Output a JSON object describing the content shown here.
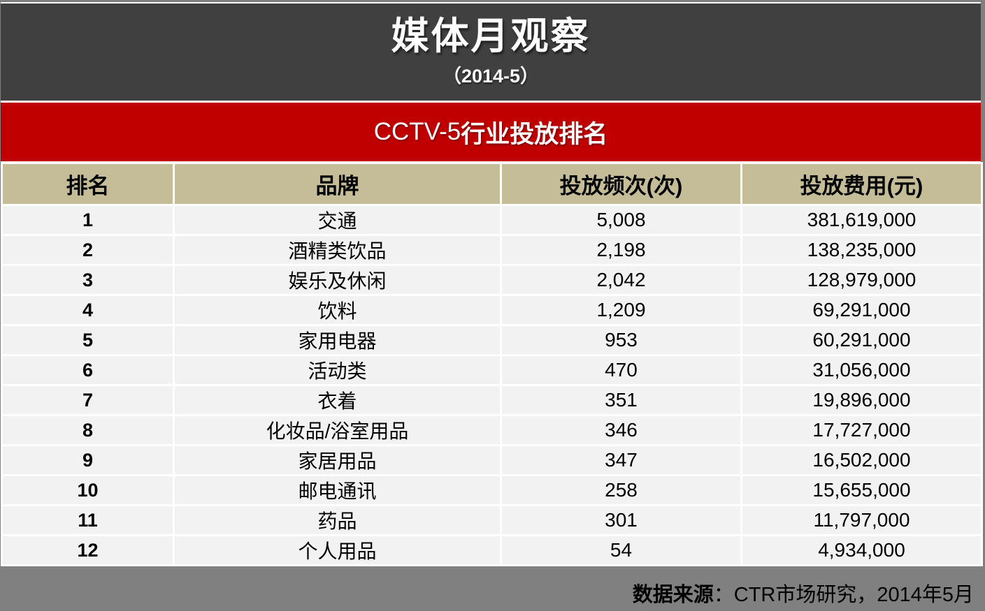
{
  "page": {
    "title": "媒体月观察",
    "subtitle": "（2014-5）",
    "section_banner": {
      "channel": "CCTV-5",
      "title": "行业投放排名"
    },
    "footer": {
      "source_label": "数据来源",
      "source_text": "：CTR市场研究，2014年5月"
    }
  },
  "table": {
    "columns": [
      "排名",
      "品牌",
      "投放频次(次)",
      "投放费用(元)"
    ],
    "rows": [
      [
        "1",
        "交通",
        "5,008",
        "381,619,000"
      ],
      [
        "2",
        "酒精类饮品",
        "2,198",
        "138,235,000"
      ],
      [
        "3",
        "娱乐及休闲",
        "2,042",
        "128,979,000"
      ],
      [
        "4",
        "饮料",
        "1,209",
        "69,291,000"
      ],
      [
        "5",
        "家用电器",
        "953",
        "60,291,000"
      ],
      [
        "6",
        "活动类",
        "470",
        "31,056,000"
      ],
      [
        "7",
        "衣着",
        "351",
        "19,896,000"
      ],
      [
        "8",
        "化妆品/浴室用品",
        "346",
        "17,727,000"
      ],
      [
        "9",
        "家居用品",
        "347",
        "16,502,000"
      ],
      [
        "10",
        "邮电通讯",
        "258",
        "15,655,000"
      ],
      [
        "11",
        "药品",
        "301",
        "11,797,000"
      ],
      [
        "12",
        "个人用品",
        "54",
        "4,934,000"
      ]
    ]
  },
  "colors": {
    "title_band_bg": "#404040",
    "banner_bg": "#c00000",
    "table_header_bg": "#c5bd98",
    "row_bg": "#f2f2f2",
    "page_bg": "#808080",
    "text_light": "#ffffff",
    "text_dark": "#000000"
  }
}
